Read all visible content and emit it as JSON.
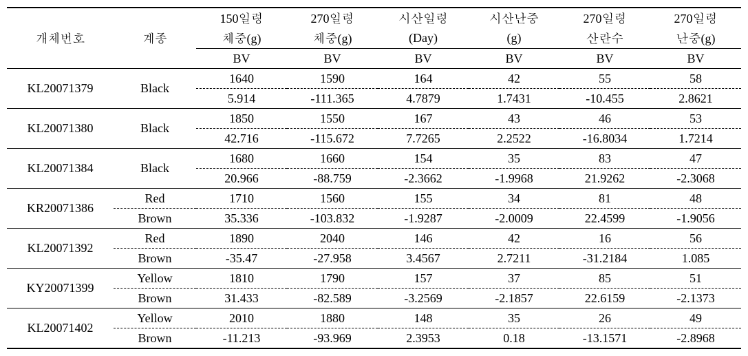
{
  "header": {
    "id": "개체번호",
    "breed": "계종",
    "cols": [
      {
        "l1": "150일령",
        "l2": "체중(g)"
      },
      {
        "l1": "270일령",
        "l2": "체중(g)"
      },
      {
        "l1": "시산일령",
        "l2": "(Day)"
      },
      {
        "l1": "시산난중",
        "l2": "(g)"
      },
      {
        "l1": "270일령",
        "l2": "산란수"
      },
      {
        "l1": "270일령",
        "l2": "난중(g)"
      }
    ],
    "bv": "BV"
  },
  "rows": [
    {
      "id": "KL20071379",
      "breed_l1": "Black",
      "breed_l2": "",
      "v": [
        "1640",
        "1590",
        "164",
        "42",
        "55",
        "58"
      ],
      "bv": [
        "5.914",
        "-111.365",
        "4.7879",
        "1.7431",
        "-10.455",
        "2.8621"
      ]
    },
    {
      "id": "KL20071380",
      "breed_l1": "Black",
      "breed_l2": "",
      "v": [
        "1850",
        "1550",
        "167",
        "43",
        "46",
        "53"
      ],
      "bv": [
        "42.716",
        "-115.672",
        "7.7265",
        "2.2522",
        "-16.8034",
        "1.7214"
      ]
    },
    {
      "id": "KL20071384",
      "breed_l1": "Black",
      "breed_l2": "",
      "v": [
        "1680",
        "1660",
        "154",
        "35",
        "83",
        "47"
      ],
      "bv": [
        "20.966",
        "-88.759",
        "-2.3662",
        "-1.9968",
        "21.9262",
        "-2.3068"
      ]
    },
    {
      "id": "KR20071386",
      "breed_l1": "Red",
      "breed_l2": "Brown",
      "v": [
        "1710",
        "1560",
        "155",
        "34",
        "81",
        "48"
      ],
      "bv": [
        "35.336",
        "-103.832",
        "-1.9287",
        "-2.0009",
        "22.4599",
        "-1.9056"
      ]
    },
    {
      "id": "KL20071392",
      "breed_l1": "Red",
      "breed_l2": "Brown",
      "v": [
        "1890",
        "2040",
        "146",
        "42",
        "16",
        "56"
      ],
      "bv": [
        "-35.47",
        "-27.958",
        "3.4567",
        "2.7211",
        "-31.2184",
        "1.085"
      ]
    },
    {
      "id": "KY20071399",
      "breed_l1": "Yellow",
      "breed_l2": "Brown",
      "v": [
        "1810",
        "1790",
        "157",
        "37",
        "85",
        "51"
      ],
      "bv": [
        "31.433",
        "-82.589",
        "-3.2569",
        "-2.1857",
        "22.6159",
        "-2.1373"
      ]
    },
    {
      "id": "KL20071402",
      "breed_l1": "Yellow",
      "breed_l2": "Brown",
      "v": [
        "2010",
        "1880",
        "148",
        "35",
        "26",
        "49"
      ],
      "bv": [
        "-11.213",
        "-93.969",
        "2.3953",
        "0.18",
        "-13.1571",
        "-2.8968"
      ]
    }
  ]
}
